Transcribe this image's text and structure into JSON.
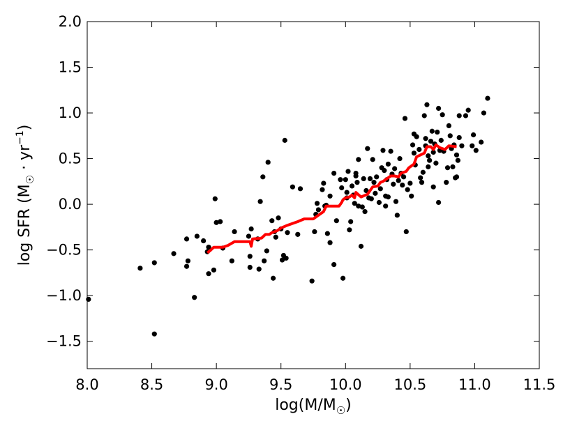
{
  "chart_data": {
    "type": "scatter",
    "xlabel": {
      "pre": "log(M/M",
      "sub": "☉",
      "post": ")"
    },
    "ylabel": {
      "pre": "log SFR (M",
      "sub": "☉",
      "mid": " · yr",
      "sup": "−1",
      "post": ")"
    },
    "xlim": [
      8.0,
      11.5
    ],
    "ylim": [
      -1.8,
      2.0
    ],
    "xticks": [
      8.0,
      8.5,
      9.0,
      9.5,
      10.0,
      10.5,
      11.0,
      11.5
    ],
    "xtick_labels": [
      "8.0",
      "8.5",
      "9.0",
      "9.5",
      "10.0",
      "10.5",
      "11.0",
      "11.5"
    ],
    "yticks": [
      -1.5,
      -1.0,
      -0.5,
      0.0,
      0.5,
      1.0,
      1.5,
      2.0
    ],
    "ytick_labels": [
      "−1.5",
      "−1.0",
      "−0.5",
      "0.0",
      "0.5",
      "1.0",
      "1.5",
      "2.0"
    ],
    "grid": false,
    "series": [
      {
        "kind": "points",
        "color": "#000000",
        "points": [
          [
            8.01,
            -1.04
          ],
          [
            8.41,
            -0.7
          ],
          [
            8.52,
            -0.64
          ],
          [
            8.52,
            -1.42
          ],
          [
            8.67,
            -0.54
          ],
          [
            8.77,
            -0.38
          ],
          [
            8.77,
            -0.68
          ],
          [
            8.78,
            -0.62
          ],
          [
            8.83,
            -1.02
          ],
          [
            8.85,
            -0.35
          ],
          [
            8.9,
            -0.4
          ],
          [
            8.93,
            -0.52
          ],
          [
            8.94,
            -0.47
          ],
          [
            8.94,
            -0.76
          ],
          [
            8.98,
            -0.72
          ],
          [
            8.99,
            0.06
          ],
          [
            9.0,
            -0.2
          ],
          [
            9.03,
            -0.19
          ],
          [
            9.05,
            -0.48
          ],
          [
            9.12,
            -0.62
          ],
          [
            9.14,
            -0.3
          ],
          [
            9.25,
            -0.35
          ],
          [
            9.26,
            -0.57
          ],
          [
            9.26,
            -0.69
          ],
          [
            9.27,
            -0.27
          ],
          [
            9.32,
            -0.38
          ],
          [
            9.33,
            -0.71
          ],
          [
            9.34,
            0.03
          ],
          [
            9.36,
            0.3
          ],
          [
            9.37,
            -0.62
          ],
          [
            9.39,
            -0.51
          ],
          [
            9.4,
            0.46
          ],
          [
            9.43,
            -0.18
          ],
          [
            9.44,
            -0.81
          ],
          [
            9.45,
            -0.3
          ],
          [
            9.46,
            -0.36
          ],
          [
            9.48,
            -0.15
          ],
          [
            9.5,
            -0.27
          ],
          [
            9.51,
            -0.61
          ],
          [
            9.52,
            -0.56
          ],
          [
            9.53,
            0.7
          ],
          [
            9.55,
            -0.31
          ],
          [
            9.54,
            -0.59
          ],
          [
            9.59,
            0.19
          ],
          [
            9.63,
            -0.33
          ],
          [
            9.65,
            0.17
          ],
          [
            9.74,
            -0.84
          ],
          [
            9.76,
            -0.3
          ],
          [
            9.77,
            -0.11
          ],
          [
            9.78,
            0.01
          ],
          [
            9.79,
            -0.06
          ],
          [
            9.82,
            0.16
          ],
          [
            9.83,
            0.23
          ],
          [
            9.84,
            -0.02
          ],
          [
            9.85,
            -0.01
          ],
          [
            9.86,
            -0.32
          ],
          [
            9.88,
            -0.42
          ],
          [
            9.88,
            0.09
          ],
          [
            9.91,
            -0.66
          ],
          [
            9.91,
            0.34
          ],
          [
            9.93,
            -0.18
          ],
          [
            9.96,
            0.27
          ],
          [
            9.97,
            0.18
          ],
          [
            9.98,
            -0.81
          ],
          [
            10.0,
            0.27
          ],
          [
            10.01,
            0.13
          ],
          [
            10.01,
            0.07
          ],
          [
            10.02,
            0.36
          ],
          [
            10.03,
            -0.28
          ],
          [
            10.04,
            -0.19
          ],
          [
            10.05,
            0.2
          ],
          [
            10.06,
            0.1
          ],
          [
            10.07,
            0.01
          ],
          [
            10.08,
            0.34
          ],
          [
            10.08,
            0.31
          ],
          [
            10.09,
            0.24
          ],
          [
            10.1,
            -0.02
          ],
          [
            10.1,
            0.49
          ],
          [
            10.12,
            -0.46
          ],
          [
            10.13,
            -0.03
          ],
          [
            10.14,
            0.28
          ],
          [
            10.15,
            -0.08
          ],
          [
            10.16,
            0.15
          ],
          [
            10.17,
            0.61
          ],
          [
            10.18,
            0.07
          ],
          [
            10.19,
            0.28
          ],
          [
            10.2,
            0.06
          ],
          [
            10.21,
            0.49
          ],
          [
            10.22,
            0.24
          ],
          [
            10.23,
            0.12
          ],
          [
            10.24,
            0.3
          ],
          [
            10.26,
            0.02
          ],
          [
            10.27,
            0.17
          ],
          [
            10.28,
            0.4
          ],
          [
            10.29,
            0.59
          ],
          [
            10.3,
            0.37
          ],
          [
            10.31,
            -0.02
          ],
          [
            10.31,
            0.09
          ],
          [
            10.32,
            0.27
          ],
          [
            10.33,
            0.44
          ],
          [
            10.33,
            0.08
          ],
          [
            10.35,
            0.58
          ],
          [
            10.36,
            0.33
          ],
          [
            10.37,
            0.22
          ],
          [
            10.38,
            0.39
          ],
          [
            10.39,
            0.03
          ],
          [
            10.4,
            -0.12
          ],
          [
            10.41,
            0.26
          ],
          [
            10.42,
            0.5
          ],
          [
            10.43,
            0.34
          ],
          [
            10.44,
            0.21
          ],
          [
            10.45,
            0.3
          ],
          [
            10.46,
            0.94
          ],
          [
            10.47,
            -0.3
          ],
          [
            10.48,
            0.16
          ],
          [
            10.5,
            0.23
          ],
          [
            10.51,
            0.09
          ],
          [
            10.52,
            0.65
          ],
          [
            10.53,
            0.77
          ],
          [
            10.53,
            0.56
          ],
          [
            10.54,
            0.43
          ],
          [
            10.55,
            0.74
          ],
          [
            10.57,
            0.6
          ],
          [
            10.58,
            0.29
          ],
          [
            10.59,
            0.24
          ],
          [
            10.6,
            0.35
          ],
          [
            10.61,
            0.97
          ],
          [
            10.62,
            0.72
          ],
          [
            10.62,
            0.64
          ],
          [
            10.63,
            1.09
          ],
          [
            10.64,
            0.41
          ],
          [
            10.64,
            0.53
          ],
          [
            10.65,
            0.48
          ],
          [
            10.66,
            0.69
          ],
          [
            10.67,
            0.8
          ],
          [
            10.68,
            0.57
          ],
          [
            10.68,
            0.19
          ],
          [
            10.69,
            0.66
          ],
          [
            10.7,
            0.45
          ],
          [
            10.71,
            0.79
          ],
          [
            10.72,
            1.05
          ],
          [
            10.72,
            0.02
          ],
          [
            10.73,
            0.59
          ],
          [
            10.74,
            0.7
          ],
          [
            10.75,
            0.98
          ],
          [
            10.76,
            0.58
          ],
          [
            10.78,
            0.24
          ],
          [
            10.79,
            0.4
          ],
          [
            10.8,
            0.86
          ],
          [
            10.81,
            0.75
          ],
          [
            10.82,
            0.61
          ],
          [
            10.83,
            0.41
          ],
          [
            10.84,
            0.65
          ],
          [
            10.85,
            0.29
          ],
          [
            10.86,
            0.3
          ],
          [
            10.86,
            0.54
          ],
          [
            10.87,
            0.48
          ],
          [
            10.88,
            0.73
          ],
          [
            10.88,
            0.97
          ],
          [
            10.9,
            0.64
          ],
          [
            10.93,
            0.97
          ],
          [
            10.95,
            1.03
          ],
          [
            10.98,
            0.64
          ],
          [
            10.99,
            0.76
          ],
          [
            11.01,
            0.59
          ],
          [
            11.05,
            0.68
          ],
          [
            11.07,
            1.0
          ],
          [
            11.1,
            1.16
          ]
        ]
      },
      {
        "kind": "line",
        "color": "#ff0000",
        "points": [
          [
            8.93,
            -0.53
          ],
          [
            8.95,
            -0.51
          ],
          [
            8.98,
            -0.47
          ],
          [
            9.05,
            -0.47
          ],
          [
            9.09,
            -0.45
          ],
          [
            9.14,
            -0.41
          ],
          [
            9.26,
            -0.41
          ],
          [
            9.27,
            -0.46
          ],
          [
            9.28,
            -0.38
          ],
          [
            9.35,
            -0.37
          ],
          [
            9.38,
            -0.33
          ],
          [
            9.41,
            -0.33
          ],
          [
            9.43,
            -0.31
          ],
          [
            9.47,
            -0.29
          ],
          [
            9.5,
            -0.26
          ],
          [
            9.55,
            -0.23
          ],
          [
            9.63,
            -0.19
          ],
          [
            9.68,
            -0.16
          ],
          [
            9.75,
            -0.16
          ],
          [
            9.78,
            -0.13
          ],
          [
            9.83,
            -0.08
          ],
          [
            9.85,
            -0.02
          ],
          [
            9.95,
            -0.02
          ],
          [
            9.97,
            0.02
          ],
          [
            9.98,
            0.05
          ],
          [
            10.0,
            0.07
          ],
          [
            10.03,
            0.08
          ],
          [
            10.05,
            0.1
          ],
          [
            10.07,
            0.07
          ],
          [
            10.08,
            0.13
          ],
          [
            10.12,
            0.08
          ],
          [
            10.17,
            0.11
          ],
          [
            10.19,
            0.15
          ],
          [
            10.21,
            0.19
          ],
          [
            10.25,
            0.2
          ],
          [
            10.27,
            0.24
          ],
          [
            10.29,
            0.25
          ],
          [
            10.32,
            0.28
          ],
          [
            10.35,
            0.31
          ],
          [
            10.38,
            0.31
          ],
          [
            10.41,
            0.3
          ],
          [
            10.43,
            0.34
          ],
          [
            10.47,
            0.36
          ],
          [
            10.49,
            0.4
          ],
          [
            10.53,
            0.44
          ],
          [
            10.55,
            0.52
          ],
          [
            10.58,
            0.54
          ],
          [
            10.61,
            0.56
          ],
          [
            10.63,
            0.63
          ],
          [
            10.66,
            0.63
          ],
          [
            10.68,
            0.6
          ],
          [
            10.7,
            0.65
          ],
          [
            10.73,
            0.62
          ],
          [
            10.77,
            0.6
          ],
          [
            10.8,
            0.64
          ],
          [
            10.86,
            0.63
          ]
        ]
      }
    ]
  }
}
